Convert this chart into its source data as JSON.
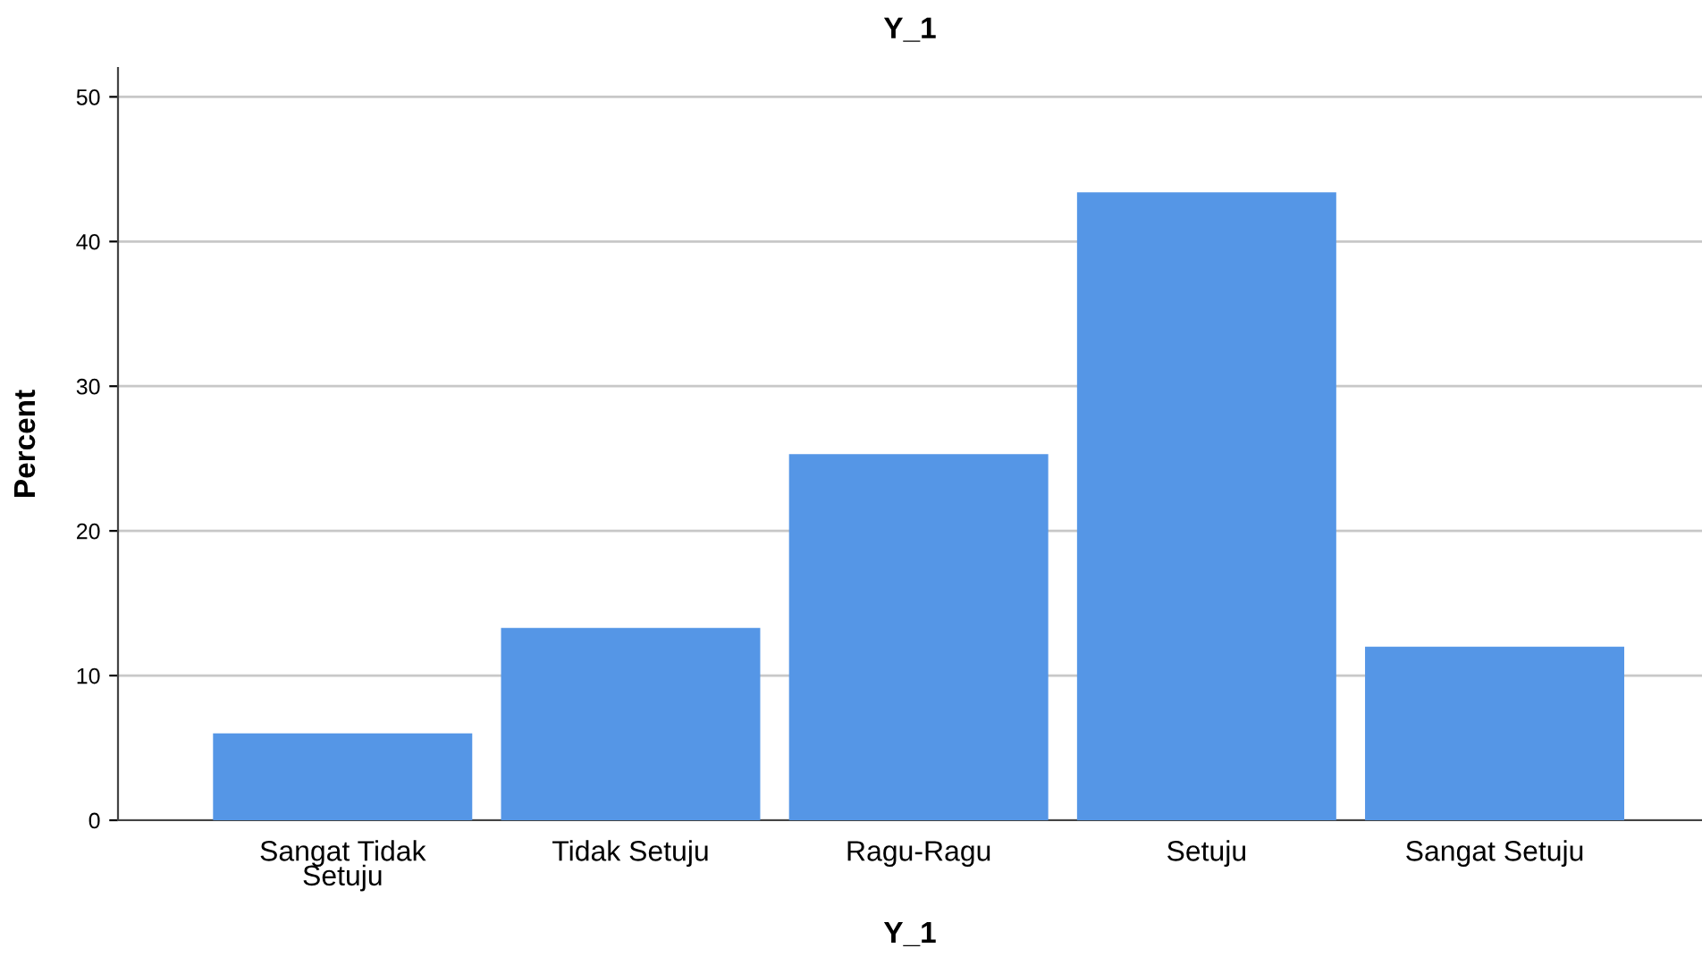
{
  "chart_data": {
    "type": "bar",
    "title": "Y_1",
    "xlabel": "Y_1",
    "ylabel": "Percent",
    "categories": [
      "Sangat Tidak\nSetuju",
      "Tidak Setuju",
      "Ragu-Ragu",
      "Setuju",
      "Sangat Setuju"
    ],
    "values": [
      6.0,
      13.3,
      25.3,
      43.4,
      12.0
    ],
    "color": "#5596e6",
    "ylim": [
      0,
      52
    ],
    "yticks": [
      0,
      10,
      20,
      30,
      40,
      50
    ],
    "grid": "y"
  }
}
